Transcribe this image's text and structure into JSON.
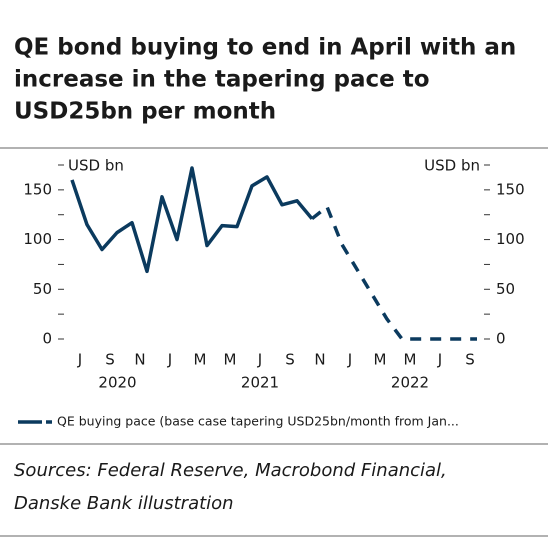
{
  "chart_data": {
    "type": "line",
    "title_lines": [
      "QE bond buying to end in April with an",
      "increase in the tapering pace to",
      "USD25bn  per month"
    ],
    "y_label": "USD bn",
    "y2_label": "USD bn",
    "categories": [
      null,
      "J",
      null,
      "S",
      null,
      "N",
      null,
      "J",
      null,
      "M",
      null,
      "M",
      null,
      "J",
      null,
      "S",
      null,
      "N",
      null,
      "J",
      null,
      "M",
      null,
      "M",
      null,
      "J",
      null,
      "S"
    ],
    "years": [
      "2020",
      "2021",
      "2022"
    ],
    "series": [
      {
        "name": "QE buying pace (base case tapering USD25bn/month from Jan...",
        "color": "#0b3a5e",
        "values": [
          160,
          115,
          90,
          107,
          117,
          68,
          143,
          100,
          172,
          94,
          114,
          113,
          154,
          163,
          135,
          139,
          121,
          null,
          null,
          null,
          null,
          null,
          null,
          null,
          null,
          null,
          null,
          null
        ],
        "projection": [
          null,
          null,
          null,
          null,
          null,
          null,
          null,
          null,
          null,
          null,
          null,
          null,
          null,
          null,
          null,
          null,
          121,
          133,
          95,
          70,
          45,
          20,
          0,
          0,
          0,
          0,
          0,
          0
        ]
      }
    ],
    "ylim": [
      0,
      175
    ],
    "yticks": [
      0,
      50,
      100,
      150
    ],
    "yminor": [
      25,
      75,
      125,
      175
    ],
    "y2lim": [
      0,
      175
    ],
    "y2ticks": [
      0,
      50,
      100,
      150
    ],
    "sources": [
      "Sources: Federal Reserve, Macrobond Financial,",
      "Danske Bank illustration"
    ]
  }
}
